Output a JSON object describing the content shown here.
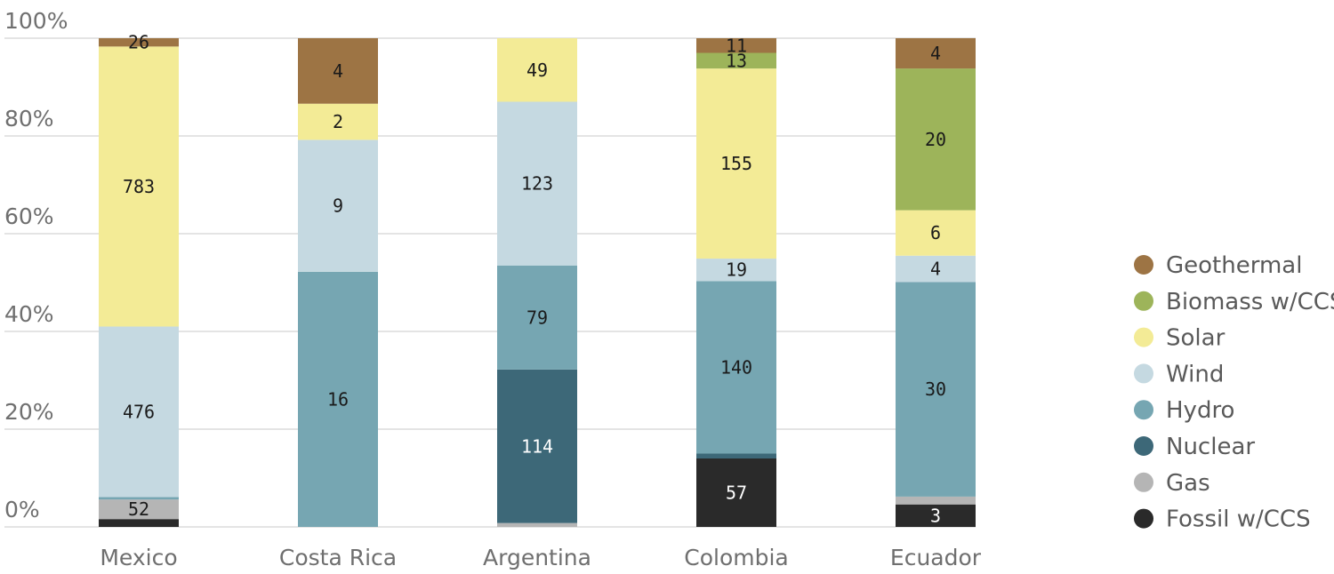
{
  "chart_data": {
    "type": "bar",
    "stacked": "percent",
    "categories": [
      "Mexico",
      "Costa Rica",
      "Argentina",
      "Colombia",
      "Ecuador"
    ],
    "ylim": [
      0,
      100
    ],
    "y_ticks": [
      "0%",
      "20%",
      "40%",
      "60%",
      "80%",
      "100%"
    ],
    "grid": "horizontal",
    "legend_position": "right",
    "series": [
      {
        "name": "Fossil w/CCS",
        "color": "#2a2a2a",
        "label_color": "#ffffff",
        "shares": [
          1.6,
          0,
          0,
          14.0,
          4.6
        ],
        "labels": [
          "",
          "",
          "",
          "57",
          "3"
        ]
      },
      {
        "name": "Gas",
        "color": "#b5b5b5",
        "label_color": "#1a1a1a",
        "shares": [
          4.0,
          0,
          0.8,
          0,
          1.6
        ],
        "labels": [
          "52",
          "",
          "",
          "",
          ""
        ]
      },
      {
        "name": "Nuclear",
        "color": "#3d6878",
        "label_color": "#ffffff",
        "shares": [
          0,
          0,
          31.4,
          1.0,
          0
        ],
        "labels": [
          "",
          "",
          "114",
          "",
          ""
        ]
      },
      {
        "name": "Hydro",
        "color": "#76a6b2",
        "label_color": "#1a1a1a",
        "shares": [
          0.5,
          52.2,
          21.3,
          35.3,
          43.9
        ],
        "labels": [
          "",
          "16",
          "79",
          "140",
          "30"
        ]
      },
      {
        "name": "Wind",
        "color": "#c5d9e1",
        "label_color": "#1a1a1a",
        "shares": [
          34.9,
          27.0,
          33.5,
          4.6,
          5.4
        ],
        "labels": [
          "476",
          "9",
          "123",
          "19",
          "4"
        ]
      },
      {
        "name": "Solar",
        "color": "#f3eb96",
        "label_color": "#1a1a1a",
        "shares": [
          57.3,
          7.4,
          13.0,
          38.9,
          9.3
        ],
        "labels": [
          "783",
          "2",
          "49",
          "155",
          ""
        ]
      },
      {
        "name": "Biomass w/CCS",
        "color": "#9db45a",
        "label_color": "#1a1a1a",
        "shares": [
          0,
          0,
          0,
          3.2,
          29.0
        ],
        "labels": [
          "",
          "",
          "",
          "13",
          "20"
        ]
      },
      {
        "name": "Geothermal",
        "color": "#9d7444",
        "label_color": "#1a1a1a",
        "shares": [
          1.7,
          13.4,
          0,
          3.0,
          6.2
        ],
        "labels": [
          "26",
          "4",
          "",
          "11",
          "4"
        ]
      }
    ],
    "label_overrides": {
      "Ecuador": {
        "Solar": "6"
      }
    }
  }
}
